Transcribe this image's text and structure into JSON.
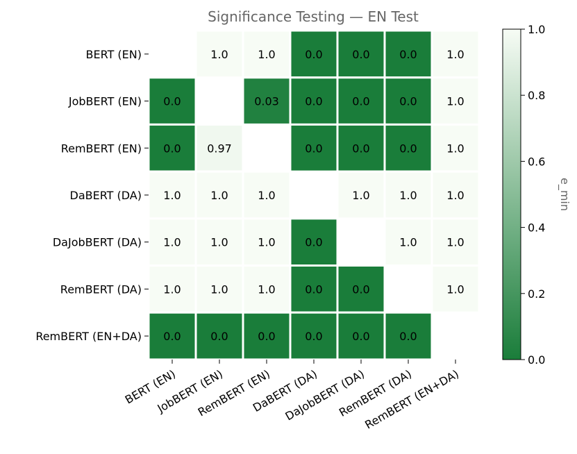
{
  "chart_data": {
    "type": "heatmap",
    "title": "Significance Testing — EN Test",
    "rows": [
      "BERT (EN)",
      "JobBERT (EN)",
      "RemBERT (EN)",
      "DaBERT (DA)",
      "DaJobBERT (DA)",
      "RemBERT (DA)",
      "RemBERT (EN+DA)"
    ],
    "columns": [
      "BERT (EN)",
      "JobBERT (EN)",
      "RemBERT (EN)",
      "DaBERT (DA)",
      "DaJobBERT (DA)",
      "RemBERT (DA)",
      "RemBERT (EN+DA)"
    ],
    "values": [
      [
        null,
        1.0,
        1.0,
        0.0,
        0.0,
        0.0,
        1.0
      ],
      [
        0.0,
        null,
        0.03,
        0.0,
        0.0,
        0.0,
        1.0
      ],
      [
        0.0,
        0.97,
        null,
        0.0,
        0.0,
        0.0,
        1.0
      ],
      [
        1.0,
        1.0,
        1.0,
        null,
        1.0,
        1.0,
        1.0
      ],
      [
        1.0,
        1.0,
        1.0,
        0.0,
        null,
        1.0,
        1.0
      ],
      [
        1.0,
        1.0,
        1.0,
        0.0,
        0.0,
        null,
        1.0
      ],
      [
        0.0,
        0.0,
        0.0,
        0.0,
        0.0,
        0.0,
        null
      ]
    ],
    "cell_labels": [
      [
        "",
        "1.0",
        "1.0",
        "0.0",
        "0.0",
        "0.0",
        "1.0"
      ],
      [
        "0.0",
        "",
        "0.03",
        "0.0",
        "0.0",
        "0.0",
        "1.0"
      ],
      [
        "0.0",
        "0.97",
        "",
        "0.0",
        "0.0",
        "0.0",
        "1.0"
      ],
      [
        "1.0",
        "1.0",
        "1.0",
        "",
        "1.0",
        "1.0",
        "1.0"
      ],
      [
        "1.0",
        "1.0",
        "1.0",
        "0.0",
        "",
        "1.0",
        "1.0"
      ],
      [
        "1.0",
        "1.0",
        "1.0",
        "0.0",
        "0.0",
        "",
        "1.0"
      ],
      [
        "0.0",
        "0.0",
        "0.0",
        "0.0",
        "0.0",
        "0.0",
        ""
      ]
    ],
    "colorbar": {
      "label": "e_min",
      "range": [
        0.0,
        1.0
      ],
      "ticks": [
        0.0,
        0.2,
        0.4,
        0.6,
        0.8,
        1.0
      ],
      "tick_labels": [
        "0.0",
        "0.2",
        "0.4",
        "0.6",
        "0.8",
        "1.0"
      ],
      "colormap": "Greens_r"
    },
    "colors": {
      "low": "#1a7d3a",
      "high": "#f7fcf5",
      "title": "#666666",
      "grid": "#ffffff"
    },
    "grid": false
  }
}
